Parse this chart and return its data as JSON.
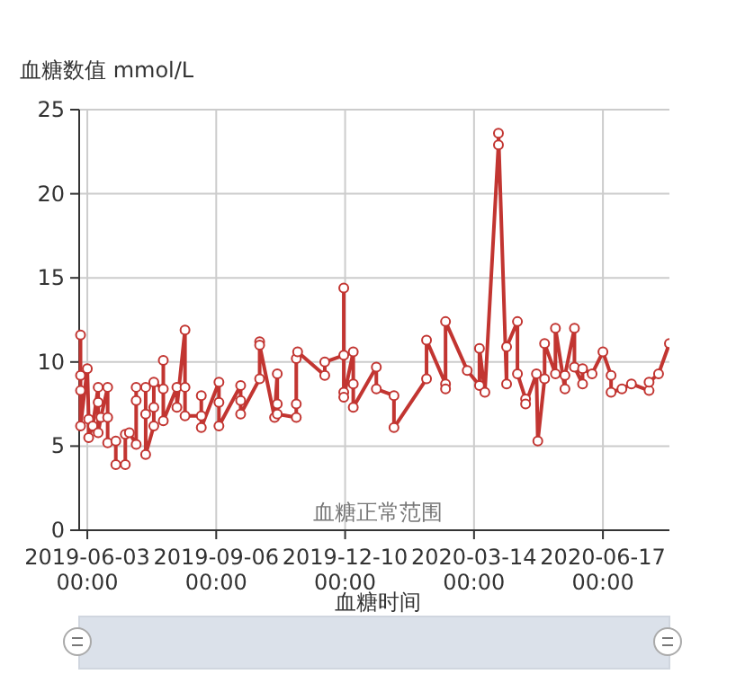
{
  "chart_data": {
    "type": "line",
    "xlabel": "血糖时间",
    "ylabel": "血糖数值 mmol/L",
    "annotations": [
      "血糖正常范围"
    ],
    "xlim": [
      "2019-05-28",
      "2020-08-05"
    ],
    "xticks": [
      {
        "value": "2019-06-03",
        "label": "2019-06-03 00:00"
      },
      {
        "value": "2019-09-06",
        "label": "2019-09-06 00:00"
      },
      {
        "value": "2019-12-10",
        "label": "2019-12-10 00:00"
      },
      {
        "value": "2020-03-14",
        "label": "2020-03-14 00:00"
      },
      {
        "value": "2020-06-17",
        "label": "2020-06-17 00:00"
      }
    ],
    "ylim": [
      0,
      25
    ],
    "yticks": [
      0,
      5,
      10,
      15,
      20,
      25
    ],
    "grid": true,
    "marker": "circle",
    "line_style": "solid",
    "series": [
      {
        "color": "#c23531",
        "x": [
          "2019-05-29",
          "2019-05-29",
          "2019-05-29",
          "2019-05-29",
          "2019-06-03",
          "2019-06-04",
          "2019-06-04",
          "2019-06-07",
          "2019-06-11",
          "2019-06-11",
          "2019-06-11",
          "2019-06-13",
          "2019-06-18",
          "2019-06-18",
          "2019-06-18",
          "2019-06-24",
          "2019-06-24",
          "2019-07-01",
          "2019-07-01",
          "2019-07-04",
          "2019-07-09",
          "2019-07-09",
          "2019-07-09",
          "2019-07-16",
          "2019-07-16",
          "2019-07-16",
          "2019-07-22",
          "2019-07-22",
          "2019-07-22",
          "2019-07-29",
          "2019-07-29",
          "2019-07-29",
          "2019-08-08",
          "2019-08-08",
          "2019-08-14",
          "2019-08-14",
          "2019-08-14",
          "2019-08-26",
          "2019-08-26",
          "2019-08-26",
          "2019-09-08",
          "2019-09-08",
          "2019-09-08",
          "2019-09-24",
          "2019-09-24",
          "2019-09-24",
          "2019-10-08",
          "2019-10-08",
          "2019-10-08",
          "2019-10-19",
          "2019-10-21",
          "2019-10-21",
          "2019-10-21",
          "2019-11-04",
          "2019-11-04",
          "2019-11-04",
          "2019-11-05",
          "2019-11-25",
          "2019-11-25",
          "2019-12-09",
          "2019-12-09",
          "2019-12-09",
          "2019-12-09",
          "2019-12-16",
          "2019-12-16",
          "2019-12-16",
          "2020-01-02",
          "2020-01-02",
          "2020-01-15",
          "2020-01-15",
          "2020-02-08",
          "2020-02-08",
          "2020-02-22",
          "2020-02-22",
          "2020-02-22",
          "2020-03-09",
          "2020-03-18",
          "2020-03-18",
          "2020-03-22",
          "2020-04-01",
          "2020-04-01",
          "2020-04-07",
          "2020-04-07",
          "2020-04-15",
          "2020-04-15",
          "2020-04-21",
          "2020-04-21",
          "2020-04-29",
          "2020-04-30",
          "2020-05-05",
          "2020-05-05",
          "2020-05-13",
          "2020-05-13",
          "2020-05-20",
          "2020-05-20",
          "2020-05-27",
          "2020-05-27",
          "2020-06-02",
          "2020-06-02",
          "2020-06-09",
          "2020-06-17",
          "2020-06-23",
          "2020-06-23",
          "2020-07-01",
          "2020-07-08",
          "2020-07-21",
          "2020-07-21",
          "2020-07-28",
          "2020-08-05"
        ],
        "values": [
          11.6,
          9.2,
          8.3,
          6.2,
          9.6,
          6.6,
          5.5,
          6.2,
          8.5,
          7.6,
          5.8,
          6.7,
          8.5,
          6.7,
          5.2,
          5.3,
          3.9,
          3.9,
          5.7,
          5.8,
          5.1,
          7.7,
          8.5,
          8.5,
          6.9,
          4.5,
          6.2,
          7.3,
          8.8,
          8.4,
          10.1,
          6.5,
          8.5,
          7.3,
          11.9,
          8.5,
          6.8,
          6.8,
          8.0,
          6.1,
          8.8,
          7.6,
          6.2,
          8.6,
          7.7,
          6.9,
          9.0,
          11.2,
          11.0,
          6.7,
          9.3,
          7.5,
          6.9,
          6.7,
          7.5,
          10.2,
          10.6,
          9.2,
          10.0,
          10.4,
          14.4,
          8.2,
          7.9,
          10.6,
          8.7,
          7.3,
          9.7,
          8.4,
          8.0,
          6.1,
          9.0,
          11.3,
          8.7,
          8.4,
          12.4,
          9.5,
          8.6,
          10.8,
          8.2,
          22.9,
          23.6,
          8.7,
          10.9,
          12.4,
          9.3,
          7.8,
          7.5,
          9.3,
          5.3,
          9.0,
          11.1,
          9.3,
          12.0,
          8.4,
          9.2,
          12.0,
          9.7,
          8.7,
          9.6,
          9.3,
          10.6,
          9.2,
          8.2,
          8.4,
          8.7,
          8.3,
          8.8,
          9.3,
          11.1
        ]
      }
    ]
  }
}
